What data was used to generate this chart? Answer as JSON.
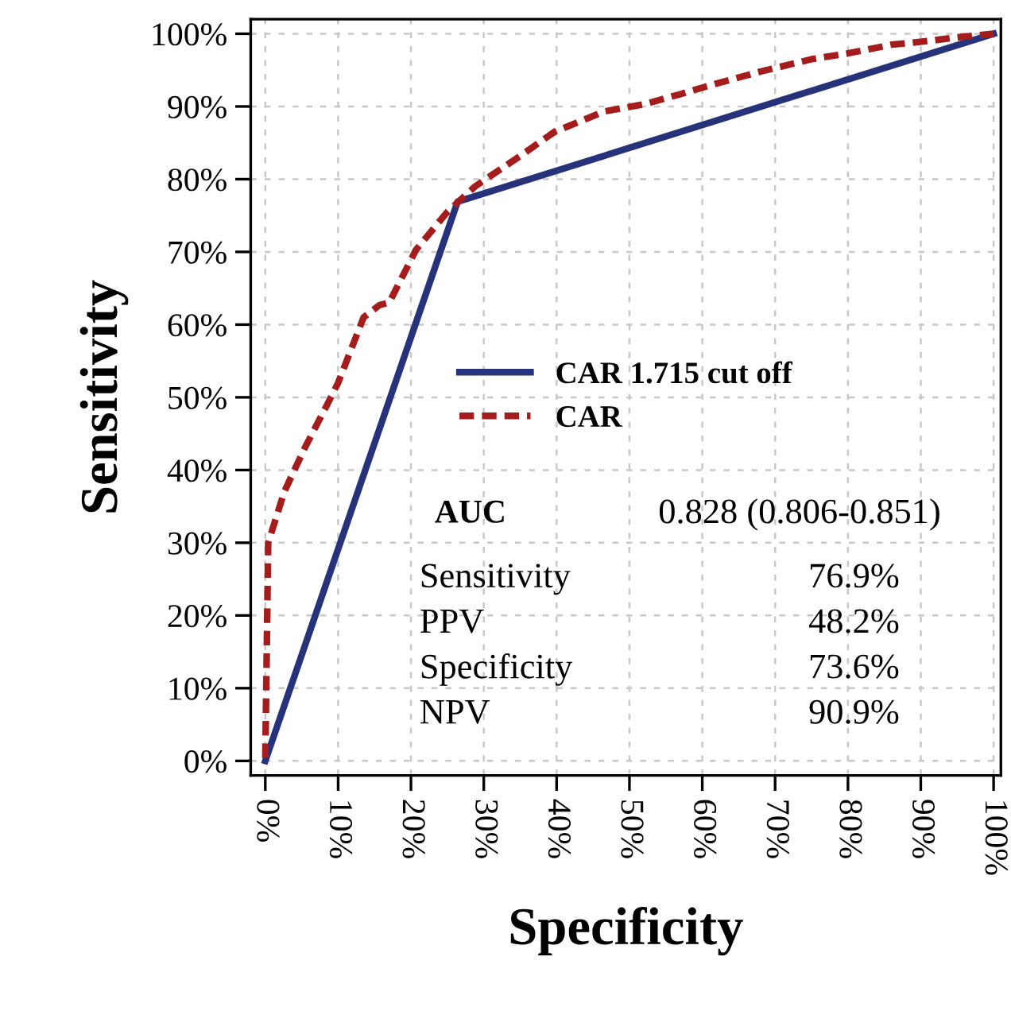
{
  "chart_data": {
    "type": "line",
    "xlabel": "Specificity",
    "ylabel": "Sensitivity",
    "xlim": [
      -2,
      101
    ],
    "ylim": [
      -2,
      102
    ],
    "xticks": [
      {
        "value": 0,
        "label": "0%"
      },
      {
        "value": 10,
        "label": "10%"
      },
      {
        "value": 20,
        "label": "20%"
      },
      {
        "value": 30,
        "label": "30%"
      },
      {
        "value": 40,
        "label": "40%"
      },
      {
        "value": 50,
        "label": "50%"
      },
      {
        "value": 60,
        "label": "60%"
      },
      {
        "value": 70,
        "label": "70%"
      },
      {
        "value": 80,
        "label": "80%"
      },
      {
        "value": 90,
        "label": "90%"
      },
      {
        "value": 100,
        "label": "100%"
      }
    ],
    "yticks": [
      {
        "value": 0,
        "label": "0%"
      },
      {
        "value": 10,
        "label": "10%"
      },
      {
        "value": 20,
        "label": "20%"
      },
      {
        "value": 30,
        "label": "30%"
      },
      {
        "value": 40,
        "label": "40%"
      },
      {
        "value": 50,
        "label": "50%"
      },
      {
        "value": 60,
        "label": "60%"
      },
      {
        "value": 70,
        "label": "70%"
      },
      {
        "value": 80,
        "label": "80%"
      },
      {
        "value": 90,
        "label": "90%"
      },
      {
        "value": 100,
        "label": "100%"
      }
    ],
    "grid": true,
    "legend": "center",
    "series": [
      {
        "name": "CAR 1.715 cut off",
        "color": "#26327a",
        "line_style": "solid",
        "x": [
          0,
          26.4,
          100
        ],
        "values": [
          0,
          76.9,
          100
        ]
      },
      {
        "name": "CAR",
        "color": "#a51c1c",
        "line_style": "dashed",
        "x": [
          0,
          0.4,
          2.6,
          5.4,
          8.5,
          10,
          13.5,
          15.7,
          17,
          20.7,
          25,
          28.8,
          35.3,
          39.7,
          46.5,
          52,
          57,
          61.4,
          68,
          75,
          80,
          86,
          91,
          95,
          100
        ],
        "values": [
          0.4,
          30,
          37,
          43,
          49,
          52,
          61,
          62.7,
          63,
          70.3,
          75.5,
          79,
          83.4,
          86.5,
          89.3,
          90.3,
          91.7,
          93,
          94.8,
          96.5,
          97.3,
          98.5,
          99,
          99.5,
          100
        ]
      }
    ],
    "annotations": [
      "AUC",
      "0.828 (0.806-0.851)",
      "Sensitivity",
      "76.9%",
      "PPV",
      "48.2%",
      "Specificity",
      "73.6%",
      "NPV",
      "90.9%"
    ]
  }
}
